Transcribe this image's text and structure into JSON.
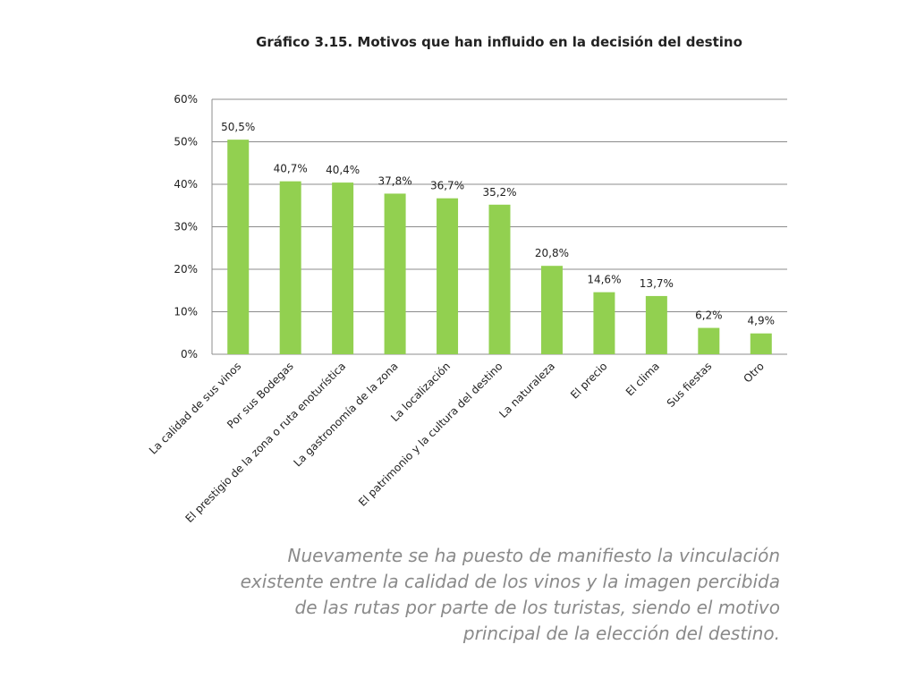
{
  "chart_data": {
    "type": "bar",
    "title": "Gráfico 3.15. Motivos que han influido en la decisión del destino",
    "categories": [
      "La calidad de sus vinos",
      "Por sus Bodegas",
      "El prestigio de la zona o ruta enoturística",
      "La gastronomía de la zona",
      "La localización",
      "El patrimonio y la cultura del destino",
      "La naturaleza",
      "El precio",
      "El clima",
      "Sus fiestas",
      "Otro"
    ],
    "values": [
      50.5,
      40.7,
      40.4,
      37.8,
      36.7,
      35.2,
      20.8,
      14.6,
      13.7,
      6.2,
      4.9
    ],
    "value_labels": [
      "50,5%",
      "40,7%",
      "40,4%",
      "37,8%",
      "36,7%",
      "35,2%",
      "20,8%",
      "14,6%",
      "13,7%",
      "6,2%",
      "4,9%"
    ],
    "color": "#92d050",
    "ylim": [
      0,
      60
    ],
    "yticks": [
      {
        "value": 0,
        "label": "0%"
      },
      {
        "value": 10,
        "label": "10%"
      },
      {
        "value": 20,
        "label": "20%"
      },
      {
        "value": 30,
        "label": "30%"
      },
      {
        "value": 40,
        "label": "40%"
      },
      {
        "value": 50,
        "label": "50%"
      },
      {
        "value": 60,
        "label": "60%"
      }
    ],
    "grid": true,
    "annotation": "Nuevamente se ha puesto de manifiesto la vinculación existente entre la calidad de los vinos y la imagen percibida de las rutas por parte de los turistas, siendo el motivo principal de la elección del destino."
  }
}
